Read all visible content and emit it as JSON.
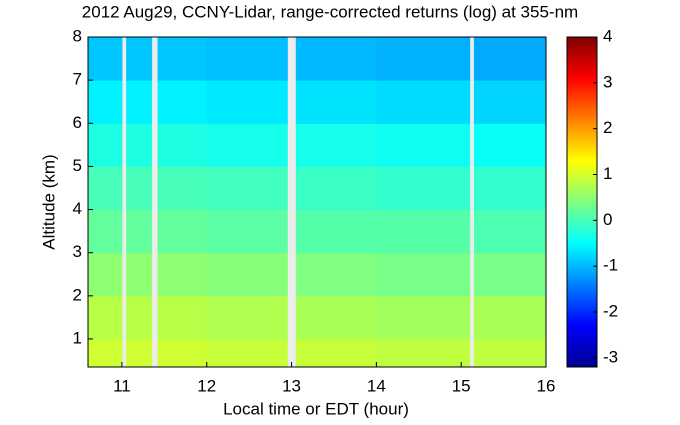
{
  "chart_data": {
    "type": "heatmap",
    "title": "2012 Aug29, CCNY-Lidar, range-corrected returns (log) at 355-nm",
    "x_label": "Local time or EDT (hour)",
    "y_label": "Altitude (km)",
    "x_bins": [
      10.6,
      11.0,
      11.05,
      11.35,
      11.42,
      12.0,
      12.95,
      13.05,
      14.0,
      15.1,
      15.15,
      16.0
    ],
    "y_bins": [
      0.35,
      1,
      2,
      3,
      4,
      5,
      6,
      7,
      8
    ],
    "z": [
      [
        0.95,
        null,
        0.95,
        null,
        0.95,
        0.9,
        null,
        0.9,
        0.85,
        null,
        0.85
      ],
      [
        0.8,
        null,
        0.8,
        null,
        0.8,
        0.75,
        null,
        0.7,
        0.65,
        null,
        0.7
      ],
      [
        0.5,
        null,
        0.5,
        null,
        0.5,
        0.45,
        null,
        0.4,
        0.35,
        null,
        0.35
      ],
      [
        0.2,
        null,
        0.2,
        null,
        0.2,
        0.15,
        null,
        0.1,
        0.1,
        null,
        0.05
      ],
      [
        0.0,
        null,
        0.0,
        null,
        0.0,
        -0.05,
        null,
        -0.1,
        -0.15,
        null,
        -0.15
      ],
      [
        -0.3,
        null,
        -0.3,
        null,
        -0.3,
        -0.35,
        null,
        -0.35,
        -0.4,
        null,
        -0.45
      ],
      [
        -0.6,
        null,
        -0.6,
        null,
        -0.6,
        -0.65,
        null,
        -0.7,
        -0.75,
        null,
        -0.8
      ],
      [
        -0.9,
        null,
        -0.9,
        null,
        -0.9,
        -0.95,
        null,
        -1.0,
        -1.05,
        null,
        -1.1
      ]
    ],
    "xlim": [
      10.6,
      16
    ],
    "xticks": [
      11,
      12,
      13,
      14,
      15,
      16
    ],
    "ylim": [
      0.35,
      8
    ],
    "yticks": [
      1,
      2,
      3,
      4,
      5,
      6,
      7,
      8
    ],
    "zlim": [
      -3.2,
      4
    ],
    "zticks": [
      -3,
      -2,
      -1,
      0,
      1,
      2,
      3,
      4
    ],
    "colormap": "jet"
  }
}
